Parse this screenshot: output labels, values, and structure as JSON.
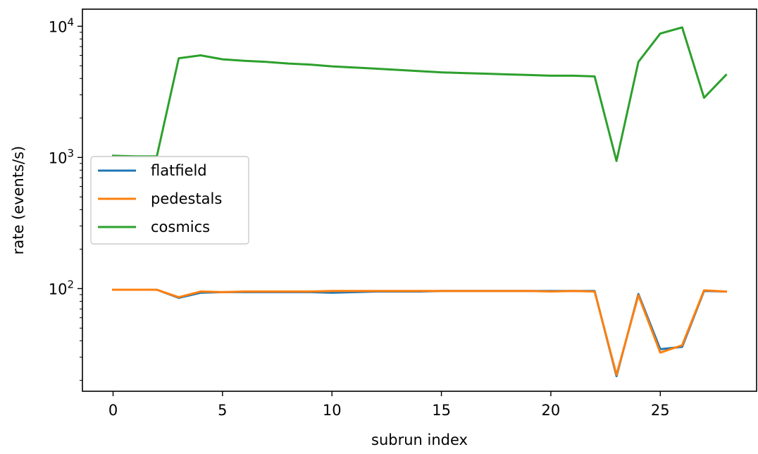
{
  "chart_data": {
    "type": "line",
    "title": "",
    "xlabel": "subrun index",
    "ylabel": "rate (events/s)",
    "xlim": [
      -1.4,
      29.4
    ],
    "ylim": [
      16.5,
      13500
    ],
    "y_scale": "log",
    "grid": false,
    "legend_position": "center-left",
    "x_ticks": [
      0,
      5,
      10,
      15,
      20,
      25
    ],
    "x_tick_labels": [
      "0",
      "5",
      "10",
      "15",
      "20",
      "25"
    ],
    "y_ticks": [
      100,
      1000,
      10000
    ],
    "y_tick_labels": [
      {
        "base": "10",
        "exp": "2"
      },
      {
        "base": "10",
        "exp": "3"
      },
      {
        "base": "10",
        "exp": "4"
      }
    ],
    "x": [
      0,
      1,
      2,
      3,
      4,
      5,
      6,
      7,
      8,
      9,
      10,
      11,
      12,
      13,
      14,
      15,
      16,
      17,
      18,
      19,
      20,
      21,
      22,
      23,
      24,
      25,
      26,
      27,
      28
    ],
    "series": [
      {
        "name": "flatfield",
        "color": "#1f77b4",
        "values": [
          98,
          98,
          98,
          85,
          93,
          94,
          94,
          94,
          94,
          94,
          93,
          94,
          95,
          95,
          95,
          96,
          96,
          96,
          96,
          96,
          96,
          96,
          96,
          21.5,
          91,
          34.5,
          36,
          96,
          95
        ]
      },
      {
        "name": "pedestals",
        "color": "#ff7f0e",
        "values": [
          98,
          98,
          98,
          86,
          95,
          94,
          95,
          95,
          95,
          95,
          96,
          96,
          96,
          96,
          96,
          96,
          96,
          96,
          96,
          96,
          95,
          96,
          95,
          22,
          89,
          32.5,
          37,
          97,
          95
        ]
      },
      {
        "name": "cosmics",
        "color": "#2ca02c",
        "values": [
          1030,
          1020,
          1020,
          5700,
          6000,
          5600,
          5450,
          5350,
          5200,
          5100,
          4950,
          4850,
          4750,
          4650,
          4550,
          4450,
          4400,
          4350,
          4300,
          4250,
          4200,
          4200,
          4150,
          940,
          5350,
          8800,
          9800,
          2850,
          4250
        ]
      }
    ]
  }
}
